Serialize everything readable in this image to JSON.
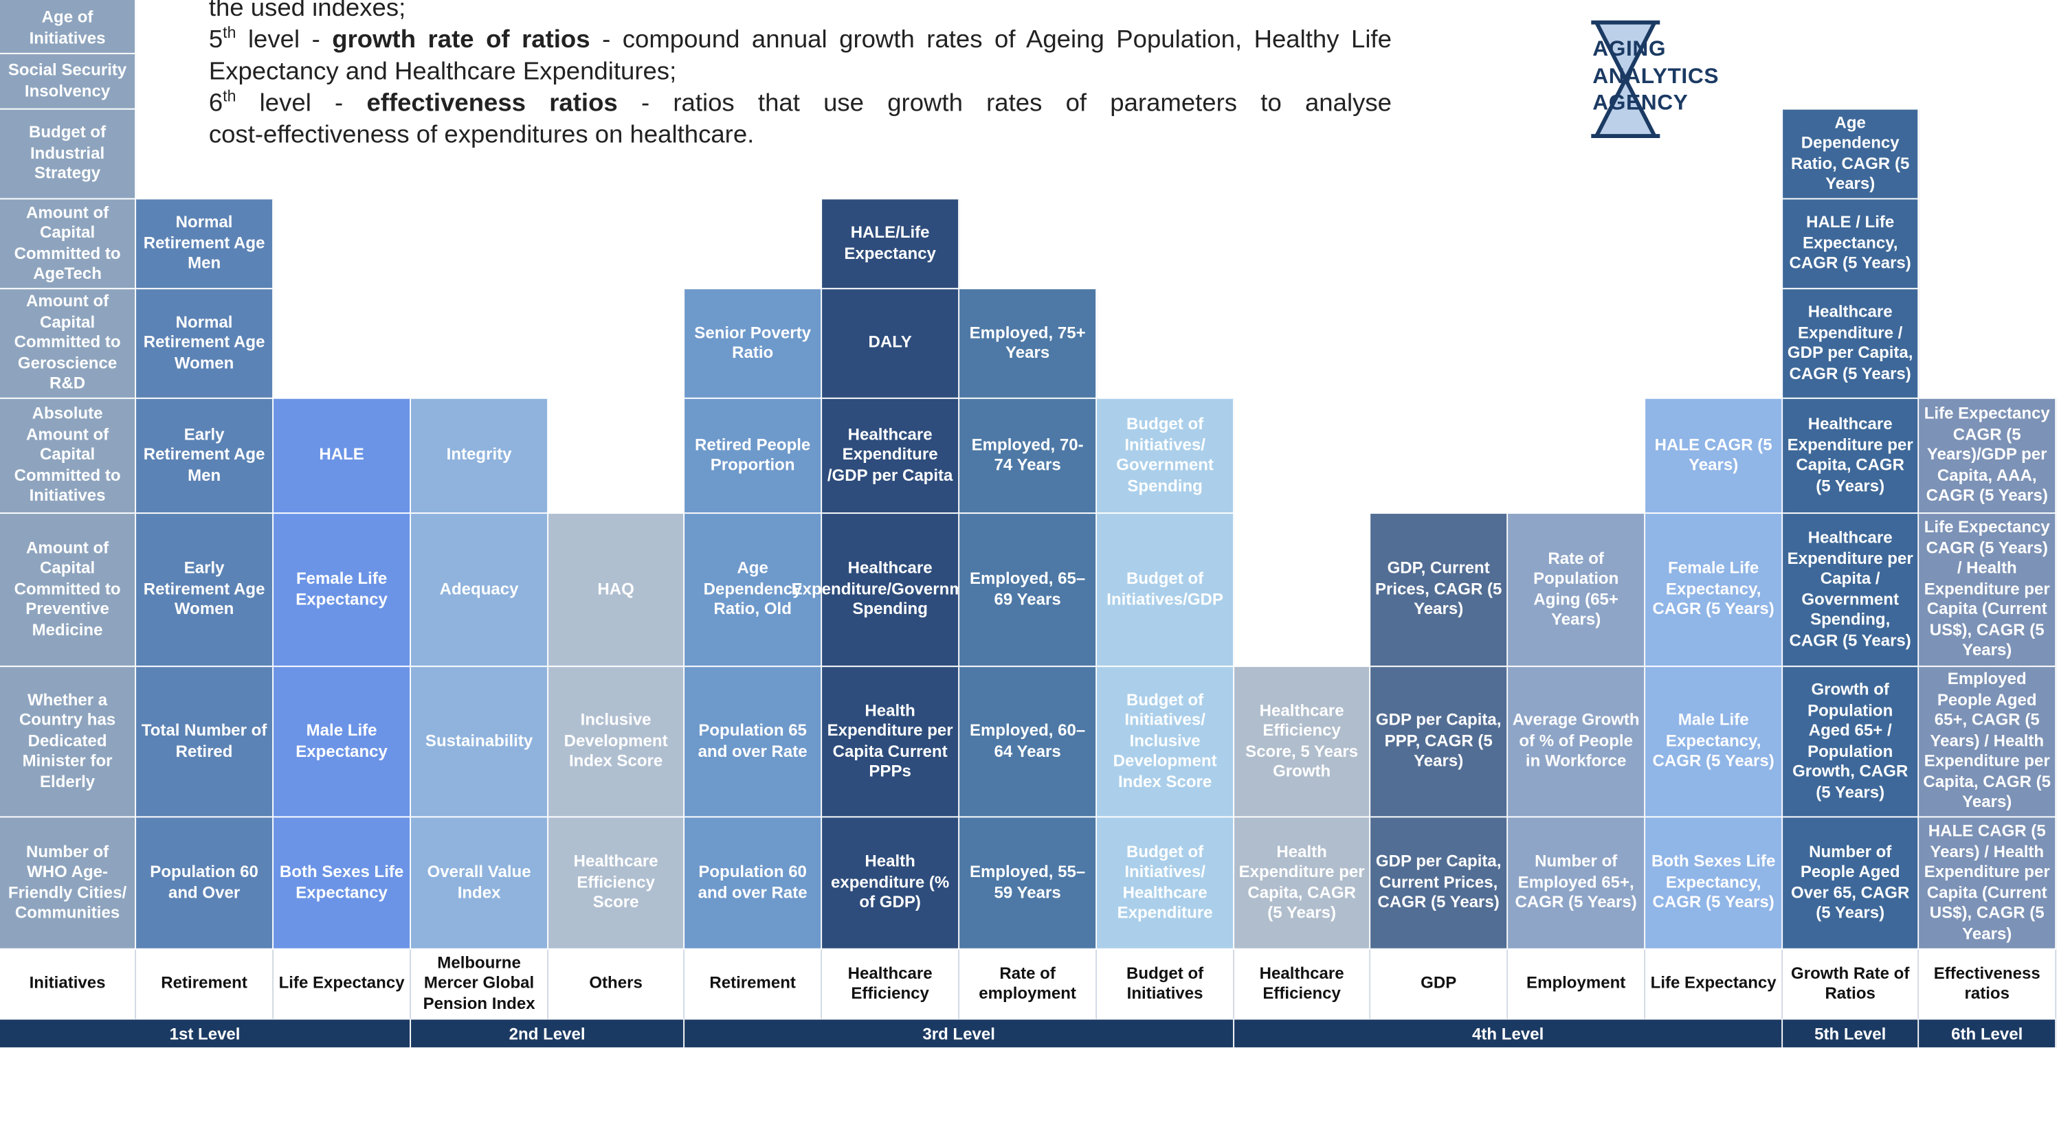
{
  "intro": {
    "line0": "the used indexes;",
    "l5_num": "5",
    "l5_sup": "th",
    "l5_mid": " level - ",
    "l5_bold": "growth rate of ratios",
    "l5_rest": " - compound annual growth rates of Ageing Population, Healthy Life",
    "l5_line2": "Expectancy and Healthcare Expenditures;",
    "l6_num": "6",
    "l6_sup": "th",
    "l6_mid": " level - ",
    "l6_bold": "effectiveness ratios",
    "l6_rest": " - ratios that use growth rates of parameters to analyse",
    "l6_line2": "cost-effectiveness of expenditures on healthcare."
  },
  "logo": {
    "line1": "AGING",
    "line2": "ANALYTICS",
    "line3": "AGENCY",
    "icon": "hourglass-icon",
    "color": "#1b3a63",
    "fill_color": "#bcd0ea"
  },
  "columns": [
    {
      "category": "Initiatives",
      "color": "#8ea4be",
      "cells": [
        "Number of WHO Age-Friendly Cities/ Communities",
        "Whether a Country has Dedicated Minister for Elderly",
        "Amount of Capital Committed to Preventive Medicine",
        "Absolute Amount of Capital Committed to Initiatives",
        "Amount of Capital Committed to Geroscience R&D",
        "Amount of Capital Committed to AgeTech",
        "Budget of Industrial Strategy",
        "Social Security Insolvency",
        "Age of Initiatives"
      ]
    },
    {
      "category": "Retirement",
      "color": "#5c83b5",
      "cells": [
        "Population 60 and Over",
        "Total Number of Retired",
        "Early Retirement Age Women",
        "Early Retirement Age Men",
        "Normal Retirement Age Women",
        "Normal Retirement Age Men"
      ]
    },
    {
      "category": "Life Expectancy",
      "color": "#6b94e6",
      "cells": [
        "Both Sexes Life Expectancy",
        "Male Life Expectancy",
        "Female Life Expectancy",
        "HALE"
      ]
    },
    {
      "category": "Melbourne Mercer Global Pension Index",
      "color": "#8fb3dd",
      "cells": [
        "Overall Value Index",
        "Sustainability",
        "Adequacy",
        "Integrity"
      ]
    },
    {
      "category": "Others",
      "color": "#b0bfd0",
      "cells": [
        "Healthcare Efficiency Score",
        "Inclusive Development Index Score",
        "HAQ"
      ]
    },
    {
      "category": "Retirement",
      "color": "#6e99cb",
      "cells": [
        "Population 60 and over Rate",
        "Population 65 and over Rate",
        "Age Dependency Ratio, Old",
        "Retired People Proportion",
        "Senior Poverty Ratio"
      ]
    },
    {
      "category": "Healthcare Efficiency",
      "color": "#2e4d7c",
      "cells": [
        "Health expenditure (% of GDP)",
        "Health Expenditure per Capita Current PPPs",
        "Healthcare Expenditure/Government Spending",
        "Healthcare Expenditure /GDP per Capita",
        "DALY",
        "HALE/Life Expectancy"
      ]
    },
    {
      "category": "Rate of employment",
      "color": "#4e79a6",
      "cells": [
        "Employed, 55–59 Years",
        "Employed, 60–64 Years",
        "Employed, 65–69 Years",
        "Employed, 70-74 Years",
        "Employed, 75+ Years"
      ]
    },
    {
      "category": "Budget of Initiatives",
      "color": "#abcfea",
      "cells": [
        "Budget of Initiatives/ Healthcare Expenditure",
        "Budget of Initiatives/ Inclusive Development Index Score",
        "Budget of Initiatives/GDP",
        "Budget of Initiatives/ Government Spending"
      ]
    },
    {
      "category": "Healthcare Efficiency",
      "color": "#b0bdcc",
      "cells": [
        "Health Expenditure per Capita, CAGR (5 Years)",
        "Healthcare Efficiency Score, 5 Years Growth"
      ]
    },
    {
      "category": "GDP",
      "color": "#536e94",
      "cells": [
        "GDP per Capita, Current Prices, CAGR (5 Years)",
        "GDP per Capita, PPP, CAGR (5 Years)",
        "GDP, Current Prices, CAGR (5 Years)"
      ]
    },
    {
      "category": "Employment",
      "color": "#8ea5c7",
      "cells": [
        "Number of Employed 65+, CAGR (5 Years)",
        "Average Growth of % of People in Workforce",
        "Rate of Population Aging (65+ Years)"
      ]
    },
    {
      "category": "Life Expectancy",
      "color": "#90b5e7",
      "cells": [
        "Both Sexes Life Expectancy, CAGR (5 Years)",
        "Male Life Expectancy, CAGR (5 Years)",
        "Female Life Expectancy, CAGR (5 Years)",
        "HALE CAGR (5 Years)"
      ]
    },
    {
      "category": "Growth Rate of Ratios",
      "color": "#3e6899",
      "cells": [
        "Number of People Aged Over 65, CAGR (5 Years)",
        "Growth of Population Aged 65+ / Population Growth, CAGR (5 Years)",
        "Healthcare Expenditure per Capita / Government Spending, CAGR (5 Years)",
        "Healthcare Expenditure per Capita, CAGR (5 Years)",
        "Healthcare Expenditure / GDP per Capita, CAGR (5 Years)",
        "HALE / Life Expectancy, CAGR (5 Years)",
        "Age Dependency Ratio, CAGR (5 Years)"
      ]
    },
    {
      "category": "Effectiveness ratios",
      "color": "#7c92b6",
      "cells": [
        "HALE CAGR (5 Years) / Health Expenditure per Capita (Current US$), CAGR (5 Years)",
        "Employed People Aged 65+, CAGR (5 Years) / Health Expenditure per Capita, CAGR (5 Years)",
        "Life Expectancy CAGR (5 Years) / Health Expenditure per Capita (Current US$), CAGR (5 Years)",
        "Life Expectancy CAGR (5 Years)/GDP per Capita, AAA, CAGR (5 Years)"
      ]
    }
  ],
  "levels": [
    {
      "label": "1st Level",
      "span": 3
    },
    {
      "label": "2nd Level",
      "span": 2
    },
    {
      "label": "3rd Level",
      "span": 4
    },
    {
      "label": "4th Level",
      "span": 4
    },
    {
      "label": "5th Level",
      "span": 1
    },
    {
      "label": "6th Level",
      "span": 1
    }
  ]
}
